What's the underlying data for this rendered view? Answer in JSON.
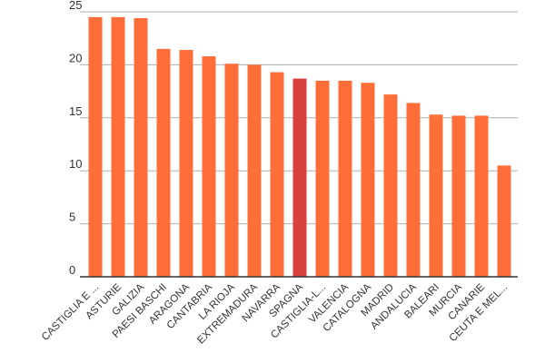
{
  "chart_data": {
    "type": "bar",
    "title": "",
    "xlabel": "",
    "ylabel": "",
    "ylim": [
      0,
      25
    ],
    "yticks": [
      0,
      5,
      10,
      15,
      20,
      25
    ],
    "grid": true,
    "legend": "none",
    "categories": [
      "CASTIGLIA E ...",
      "ASTURIE",
      "GALIZIA",
      "PAESI BASCHI",
      "ARAGONA",
      "CANTABRIA",
      "LA RIOJA",
      "EXTREMADURA",
      "NAVARRA",
      "SPAGNA",
      "CASTIGLIA-L...",
      "VALENCIA",
      "CATALOGNA",
      "MADRID",
      "ANDALUCIA",
      "BALEARI",
      "MURCIA",
      "CANARIE",
      "CEUTA E MEL..."
    ],
    "values": [
      24.5,
      24.5,
      24.4,
      21.5,
      21.4,
      20.8,
      20.1,
      20.0,
      19.3,
      18.7,
      18.5,
      18.5,
      18.3,
      17.2,
      16.4,
      15.3,
      15.2,
      15.2,
      10.5
    ],
    "highlight_index": 9,
    "colors": {
      "bar": "#ff6d38",
      "highlight": "#d7403d",
      "grid": "#b0b0b0",
      "baseline": "#333333"
    }
  }
}
